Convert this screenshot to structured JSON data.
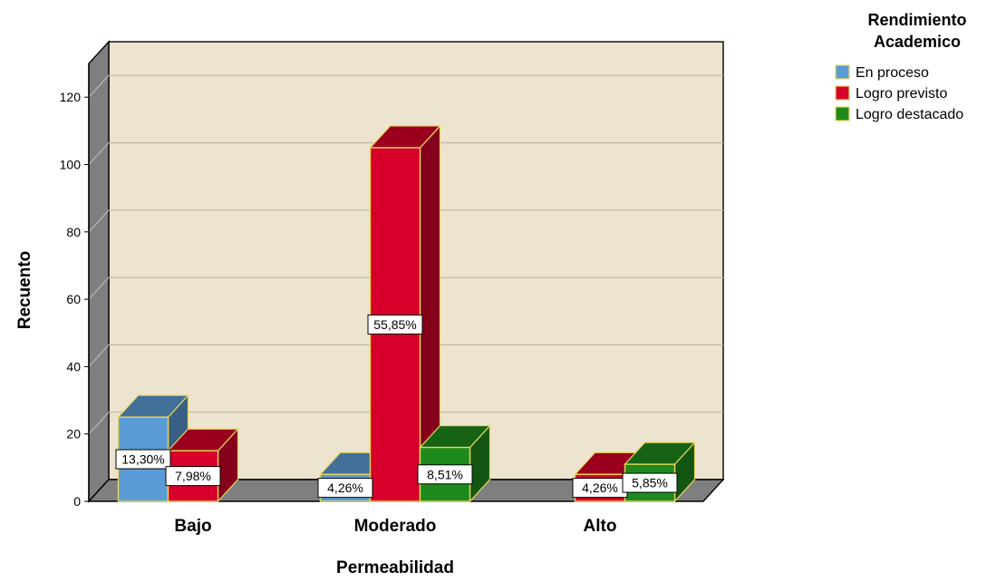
{
  "chart_data": {
    "type": "bar",
    "xlabel": "Permeabilidad",
    "ylabel": "Recuento",
    "ylim": [
      0,
      130
    ],
    "yticks": [
      0,
      20,
      40,
      60,
      80,
      100,
      120
    ],
    "categories": [
      "Bajo",
      "Moderado",
      "Alto"
    ],
    "legend": {
      "title": "Rendimiento Academico",
      "placement": "top-right"
    },
    "grid": true,
    "series": [
      {
        "name": "En proceso",
        "color": "#5b9bd5",
        "values": [
          25,
          8,
          0
        ],
        "labels": [
          "13,30%",
          "4,26%",
          ""
        ]
      },
      {
        "name": "Logro previsto",
        "color": "#d6002a",
        "values": [
          15,
          105,
          8
        ],
        "labels": [
          "7,98%",
          "55,85%",
          "4,26%"
        ]
      },
      {
        "name": "Logro destacado",
        "color": "#1e8a1e",
        "values": [
          0,
          16,
          11
        ],
        "labels": [
          "",
          "8,51%",
          "5,85%"
        ]
      }
    ]
  }
}
